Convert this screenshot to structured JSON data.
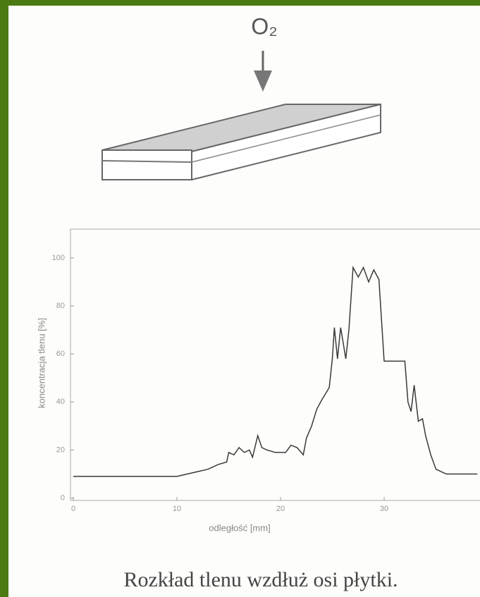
{
  "diagram": {
    "label": "O₂"
  },
  "chart_data": {
    "type": "line",
    "xlabel": "odległość [mm]",
    "ylabel": "koncentracja tlenu [%]",
    "x": [
      0,
      10,
      11,
      12,
      13,
      14,
      14.8,
      15,
      15.5,
      16,
      16.5,
      17,
      17.3,
      17.8,
      18.2,
      18.7,
      19.5,
      20.5,
      21,
      21.6,
      22.2,
      22.5,
      23,
      23.5,
      24,
      24.7,
      25,
      25.2,
      25.5,
      25.8,
      26.3,
      26.6,
      27,
      27.5,
      28,
      28.5,
      29,
      29.5,
      30,
      31,
      32,
      32.3,
      32.6,
      32.9,
      33.3,
      33.7,
      34,
      34.5,
      35,
      36,
      37,
      39
    ],
    "values": [
      9,
      9,
      10,
      11,
      12,
      14,
      15,
      19,
      18,
      21,
      19,
      20,
      17,
      26,
      21,
      20,
      19,
      19,
      22,
      21,
      18,
      25,
      30,
      37,
      41,
      46,
      58,
      71,
      58,
      71,
      58,
      70,
      96,
      92,
      96,
      90,
      95,
      91,
      57,
      57,
      57,
      40,
      36,
      47,
      32,
      33,
      26,
      18,
      12,
      10,
      10,
      10
    ],
    "color": "#3a3a3a",
    "xlim": [
      0,
      39.2
    ],
    "ylim": [
      -1,
      112
    ],
    "xticks": [
      0,
      10,
      20,
      30
    ],
    "yticks": [
      0,
      20,
      40,
      60,
      80,
      100
    ]
  },
  "caption": "Rozkład tlenu wzdłuż osi płytki."
}
